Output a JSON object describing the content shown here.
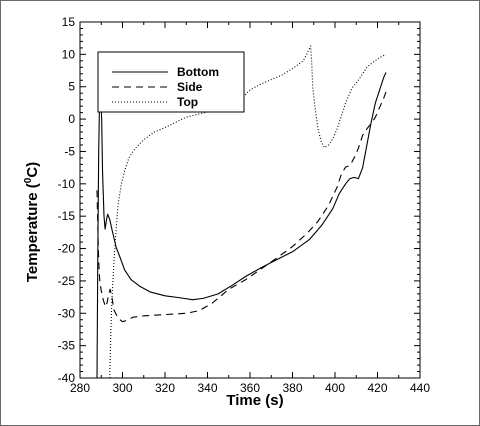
{
  "chart_data": {
    "type": "line",
    "xlabel": "Time (s)",
    "ylabel_main": "Temperature (",
    "ylabel_sup": "0",
    "ylabel_tail": "C)",
    "xlim": [
      280,
      440
    ],
    "ylim": [
      -40,
      15
    ],
    "xticks": [
      280,
      300,
      320,
      340,
      360,
      380,
      400,
      420,
      440
    ],
    "yticks": [
      -40,
      -35,
      -30,
      -25,
      -20,
      -15,
      -10,
      -5,
      0,
      5,
      10,
      15
    ],
    "legend_position": "top-left",
    "series": [
      {
        "name": "Bottom",
        "dash": "solid",
        "points": [
          [
            288,
            -40
          ],
          [
            288.4,
            -20
          ],
          [
            288.8,
            -5
          ],
          [
            289.2,
            3
          ],
          [
            289.6,
            4.6
          ],
          [
            290.2,
            0
          ],
          [
            290.6,
            -8
          ],
          [
            291.3,
            -15
          ],
          [
            291.8,
            -17
          ],
          [
            292.5,
            -15.5
          ],
          [
            293,
            -14.7
          ],
          [
            294,
            -15.5
          ],
          [
            295,
            -17
          ],
          [
            297,
            -19.8
          ],
          [
            299,
            -21.5
          ],
          [
            301,
            -23.3
          ],
          [
            304,
            -24.8
          ],
          [
            308,
            -25.8
          ],
          [
            313,
            -26.7
          ],
          [
            320,
            -27.3
          ],
          [
            327,
            -27.6
          ],
          [
            333,
            -27.9
          ],
          [
            338,
            -27.7
          ],
          [
            345,
            -27
          ],
          [
            352,
            -25.6
          ],
          [
            358,
            -24.3
          ],
          [
            365,
            -23
          ],
          [
            372,
            -21.8
          ],
          [
            380,
            -20.5
          ],
          [
            388,
            -18.6
          ],
          [
            394,
            -16.3
          ],
          [
            399,
            -13.8
          ],
          [
            402,
            -11.5
          ],
          [
            405,
            -10
          ],
          [
            407,
            -9.2
          ],
          [
            409,
            -9
          ],
          [
            411,
            -9.2
          ],
          [
            413,
            -7.5
          ],
          [
            415,
            -4
          ],
          [
            417,
            -0.5
          ],
          [
            419,
            2.5
          ],
          [
            421,
            4.5
          ],
          [
            423,
            6.5
          ],
          [
            424,
            7.2
          ]
        ]
      },
      {
        "name": "Side",
        "dash": "dashed",
        "points": [
          [
            288,
            -11
          ],
          [
            288.4,
            -17
          ],
          [
            288.8,
            -22
          ],
          [
            289.3,
            -25
          ],
          [
            290,
            -26.5
          ],
          [
            291,
            -28
          ],
          [
            292,
            -29
          ],
          [
            292.8,
            -28.3
          ],
          [
            293.5,
            -27
          ],
          [
            294.2,
            -26.3
          ],
          [
            295,
            -27.5
          ],
          [
            296,
            -29.5
          ],
          [
            298,
            -30.8
          ],
          [
            300,
            -31.3
          ],
          [
            302,
            -31.1
          ],
          [
            305,
            -30.6
          ],
          [
            310,
            -30.4
          ],
          [
            320,
            -30.2
          ],
          [
            330,
            -30
          ],
          [
            336,
            -29.6
          ],
          [
            342,
            -28.5
          ],
          [
            350,
            -26.3
          ],
          [
            358,
            -24.8
          ],
          [
            365,
            -23.2
          ],
          [
            372,
            -21.6
          ],
          [
            380,
            -19.7
          ],
          [
            387,
            -17.6
          ],
          [
            392,
            -15.8
          ],
          [
            397,
            -13.3
          ],
          [
            401,
            -10.5
          ],
          [
            403,
            -8.5
          ],
          [
            405,
            -7.4
          ],
          [
            407,
            -7.2
          ],
          [
            409,
            -6
          ],
          [
            411,
            -4.5
          ],
          [
            413,
            -2.5
          ],
          [
            415,
            -1.5
          ],
          [
            417,
            -0.7
          ],
          [
            419,
            0.3
          ],
          [
            421,
            1.8
          ],
          [
            423,
            3.3
          ],
          [
            424,
            4.2
          ]
        ]
      },
      {
        "name": "Top",
        "dash": "dotted",
        "points": [
          [
            294,
            -40
          ],
          [
            294.5,
            -33
          ],
          [
            295,
            -28
          ],
          [
            296,
            -22
          ],
          [
            297,
            -17
          ],
          [
            298,
            -13
          ],
          [
            299.5,
            -10
          ],
          [
            301,
            -8
          ],
          [
            303,
            -6
          ],
          [
            306,
            -4.5
          ],
          [
            310,
            -3.2
          ],
          [
            315,
            -2
          ],
          [
            320,
            -1.3
          ],
          [
            325,
            -0.5
          ],
          [
            330,
            0.3
          ],
          [
            340,
            1.1
          ],
          [
            350,
            1.6
          ],
          [
            354,
            1.9
          ],
          [
            357,
            3.5
          ],
          [
            360,
            4.5
          ],
          [
            365,
            5.4
          ],
          [
            370,
            6.1
          ],
          [
            375,
            6.8
          ],
          [
            380,
            7.8
          ],
          [
            385,
            9
          ],
          [
            387,
            10.2
          ],
          [
            388.5,
            11.3
          ],
          [
            389,
            9
          ],
          [
            389.5,
            5
          ],
          [
            390.5,
            2
          ],
          [
            392,
            -1.5
          ],
          [
            393.5,
            -3.5
          ],
          [
            395,
            -4.4
          ],
          [
            397,
            -4
          ],
          [
            399,
            -3
          ],
          [
            401,
            -1.5
          ],
          [
            403,
            0.5
          ],
          [
            405,
            2.5
          ],
          [
            408,
            4.8
          ],
          [
            411,
            6
          ],
          [
            413,
            7
          ],
          [
            415,
            8
          ],
          [
            418,
            8.8
          ],
          [
            421,
            9.5
          ],
          [
            424,
            10
          ]
        ]
      }
    ]
  }
}
